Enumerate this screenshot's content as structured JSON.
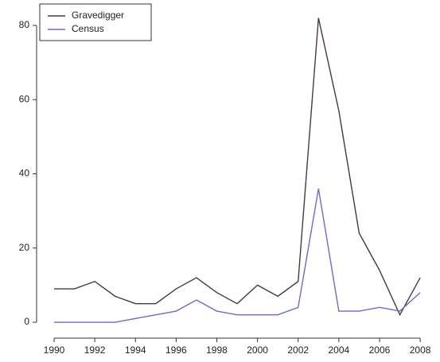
{
  "chart_data": {
    "type": "line",
    "x": [
      1990,
      1991,
      1992,
      1993,
      1994,
      1995,
      1996,
      1997,
      1998,
      1999,
      2000,
      2001,
      2002,
      2003,
      2004,
      2005,
      2006,
      2007,
      2008
    ],
    "series": [
      {
        "name": "Gravedigger",
        "color": "#4a3a36",
        "values": [
          9,
          9,
          11,
          7,
          5,
          5,
          9,
          12,
          8,
          5,
          10,
          7,
          11,
          82,
          57,
          24,
          14,
          2,
          12
        ]
      },
      {
        "name": "Census",
        "color": "#6a6ad0",
        "values": [
          0,
          0,
          0,
          0,
          1,
          2,
          3,
          6,
          3,
          2,
          2,
          2,
          4,
          36,
          3,
          3,
          4,
          3,
          8
        ]
      }
    ],
    "xlim": [
      1989.3,
      2008.7
    ],
    "xticks": [
      1990,
      1992,
      1994,
      1996,
      1998,
      2000,
      2002,
      2004,
      2006,
      2008
    ],
    "ylim": [
      -3.3,
      85.3
    ],
    "yticks": [
      0,
      20,
      40,
      60,
      80
    ],
    "legend": "top-left"
  }
}
